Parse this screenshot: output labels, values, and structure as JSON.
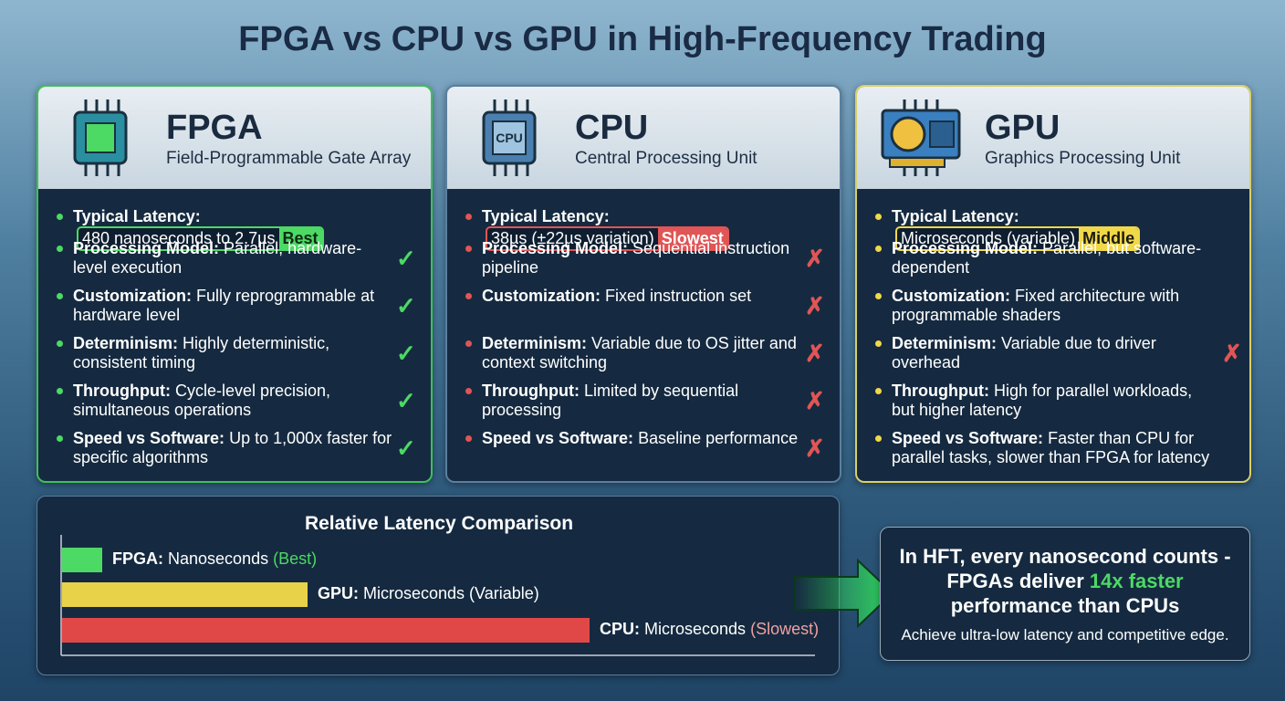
{
  "title": "FPGA vs CPU vs GPU in High-Frequency Trading",
  "cards": [
    {
      "name": "FPGA",
      "subtitle": "Field-Programmable Gate Array",
      "latency_label": "Typical Latency:",
      "latency_value": "480 nanoseconds to 2.7µs",
      "badge": "Best",
      "items": [
        {
          "label": "Processing Model:",
          "text": "Parallel, hardware-level execution",
          "icon": "✓"
        },
        {
          "label": "Customization:",
          "text": "Fully reprogrammable at hardware level",
          "icon": "✓"
        },
        {
          "label": "Determinism:",
          "text": "Highly deterministic, consistent timing",
          "icon": "✓"
        },
        {
          "label": "Throughput:",
          "text": "Cycle-level precision, simultaneous operations",
          "icon": "✓"
        },
        {
          "label": "Speed vs Software:",
          "text": "Up to 1,000x faster for specific algorithms",
          "icon": "✓"
        }
      ]
    },
    {
      "name": "CPU",
      "subtitle": "Central Processing Unit",
      "latency_label": "Typical Latency:",
      "latency_value": "38µs (±22µs variation)",
      "badge": "Slowest",
      "items": [
        {
          "label": "Processing Model:",
          "text": "Sequential instruction pipeline",
          "icon": "✗"
        },
        {
          "label": "Customization:",
          "text": "Fixed instruction set",
          "icon": "✗"
        },
        {
          "label": "Determinism:",
          "text": "Variable due to OS jitter and context switching",
          "icon": "✗"
        },
        {
          "label": "Throughput:",
          "text": "Limited by sequential processing",
          "icon": "✗"
        },
        {
          "label": "Speed vs Software:",
          "text": "Baseline performance",
          "icon": "✗"
        }
      ]
    },
    {
      "name": "GPU",
      "subtitle": "Graphics Processing Unit",
      "latency_label": "Typical Latency:",
      "latency_value": "Microseconds (variable)",
      "badge": "Middle",
      "items": [
        {
          "label": "Processing Model:",
          "text": "Parallel, but software-dependent"
        },
        {
          "label": "Customization:",
          "text": "Fixed architecture with programmable shaders"
        },
        {
          "label": "Determinism:",
          "text": "Variable due to driver overhead",
          "icon": "✗"
        },
        {
          "label": "Throughput:",
          "text": "High for parallel workloads, but higher latency"
        },
        {
          "label": "Speed vs Software:",
          "text": "Faster than CPU for parallel tasks, slower than FPGA for latency"
        }
      ]
    }
  ],
  "comparison": {
    "title": "Relative Latency Comparison",
    "bars": [
      {
        "name": "FPGA:",
        "desc": "Nanoseconds",
        "note": "(Best)"
      },
      {
        "name": "GPU:",
        "desc": "Microseconds (Variable)"
      },
      {
        "name": "CPU:",
        "desc": "Microseconds",
        "note": "(Slowest)"
      }
    ]
  },
  "callout": {
    "text_before": "In HFT, every nanosecond counts - FPGAs deliver",
    "highlight": "14x faster",
    "text_after": "performance than CPUs",
    "subtext": "Achieve ultra-low latency and competitive edge."
  }
}
